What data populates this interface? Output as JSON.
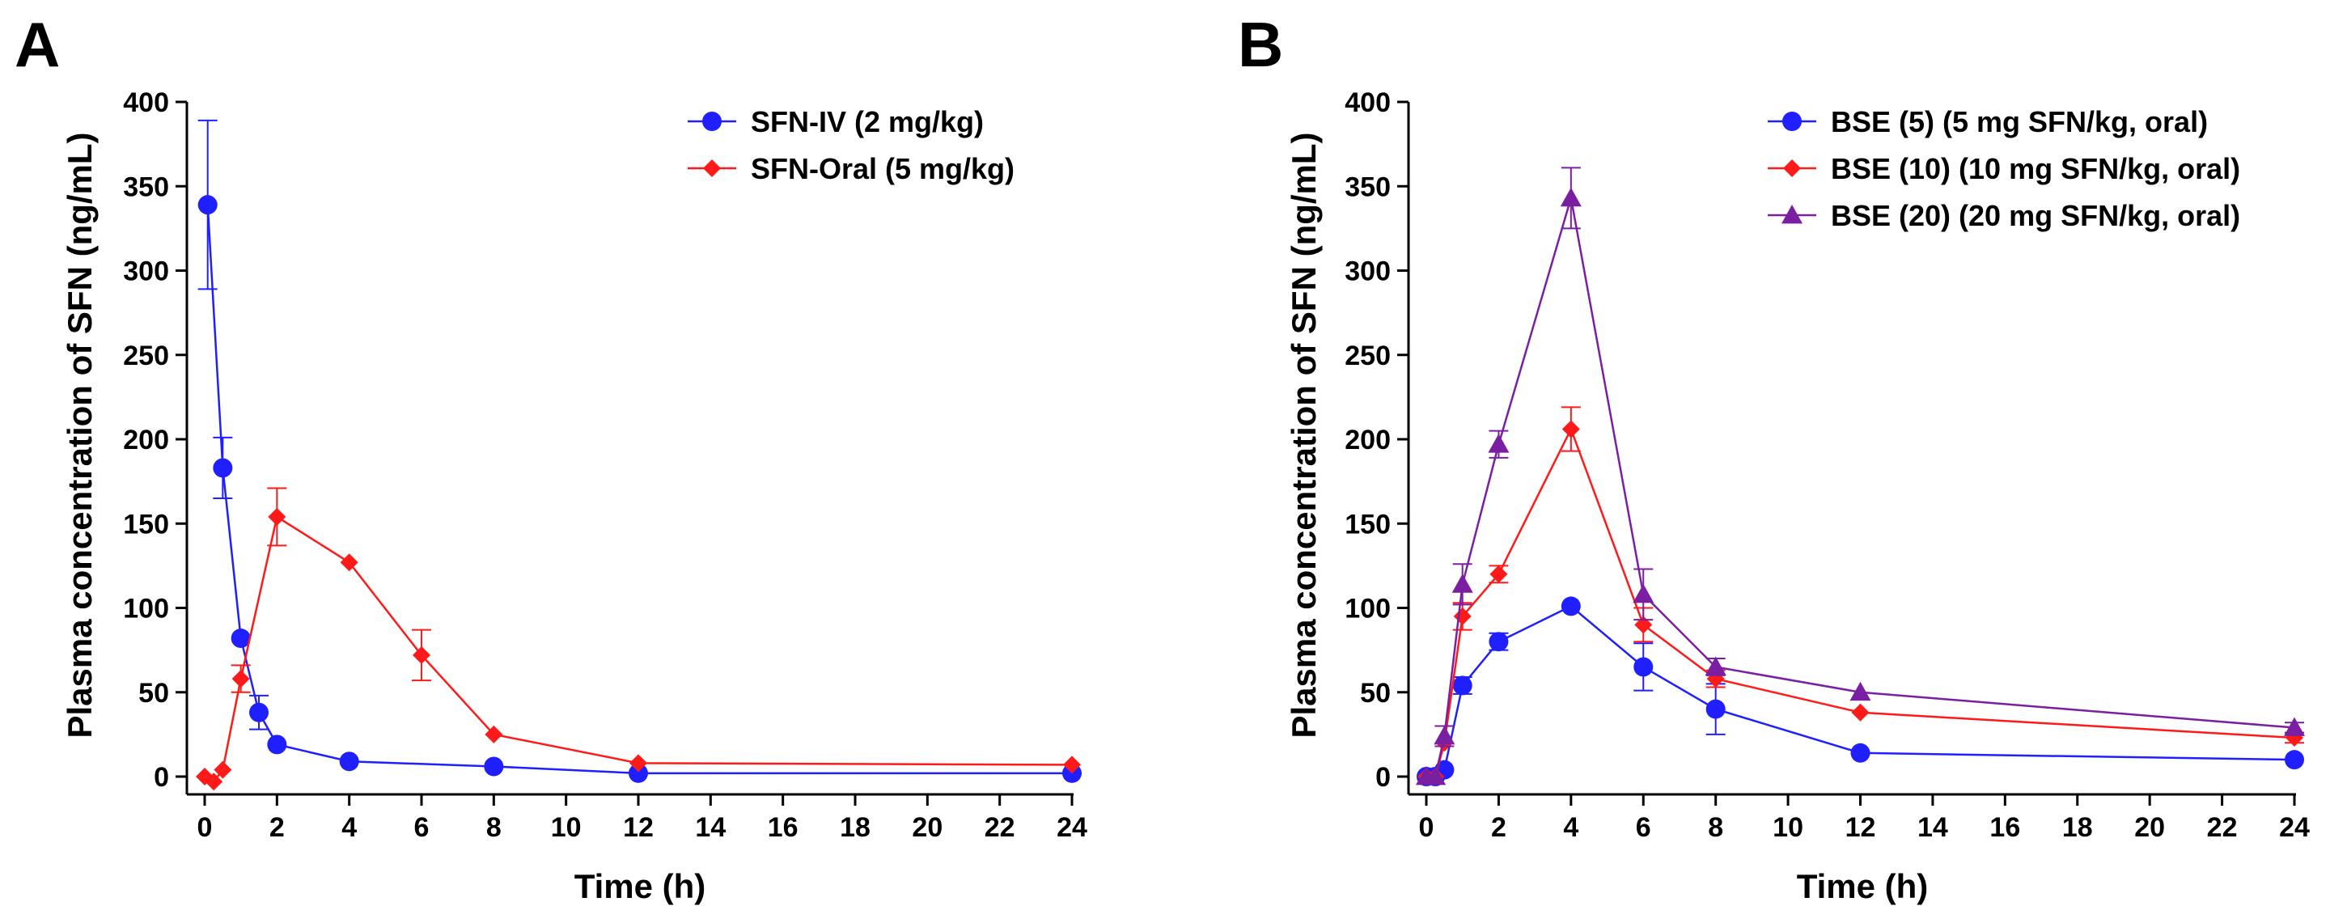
{
  "chart_data": [
    {
      "panel": "A",
      "type": "line",
      "title": "",
      "xlabel": "Time (h)",
      "ylabel": "Plasma concentration of SFN (ng/mL)",
      "xlim": [
        0,
        24
      ],
      "ylim": [
        0,
        400
      ],
      "xticks": [
        0,
        2,
        4,
        6,
        8,
        10,
        12,
        14,
        16,
        18,
        20,
        22,
        24
      ],
      "yticks": [
        0,
        50,
        100,
        150,
        200,
        250,
        300,
        350,
        400
      ],
      "grid": false,
      "legend_position": "top-right",
      "series": [
        {
          "name": "SFN-IV (2 mg/kg)",
          "color": "#1f1fff",
          "marker": "circle",
          "x": [
            0.083,
            0.5,
            1,
            1.5,
            2,
            4,
            8,
            12,
            24
          ],
          "y": [
            339,
            183,
            82,
            38,
            19,
            9,
            6,
            2,
            2
          ],
          "err": [
            50,
            18,
            0,
            10,
            0,
            0,
            0,
            0,
            0
          ]
        },
        {
          "name": "SFN-Oral (5 mg/kg)",
          "color": "#ff1a1a",
          "marker": "diamond",
          "x": [
            0,
            0.25,
            0.5,
            1,
            2,
            4,
            6,
            8,
            12,
            24
          ],
          "y": [
            0,
            -3,
            4,
            58,
            154,
            127,
            72,
            25,
            8,
            7
          ],
          "err": [
            0,
            0,
            0,
            8,
            17,
            0,
            15,
            0,
            0,
            0
          ]
        }
      ]
    },
    {
      "panel": "B",
      "type": "line",
      "title": "",
      "xlabel": "Time (h)",
      "ylabel": "Plasma concentration of SFN (ng/mL)",
      "xlim": [
        0,
        24
      ],
      "ylim": [
        0,
        400
      ],
      "xticks": [
        0,
        2,
        4,
        6,
        8,
        10,
        12,
        14,
        16,
        18,
        20,
        22,
        24
      ],
      "yticks": [
        0,
        50,
        100,
        150,
        200,
        250,
        300,
        350,
        400
      ],
      "grid": false,
      "legend_position": "top-right",
      "series": [
        {
          "name": "BSE (5) (5 mg SFN/kg, oral)",
          "color": "#1f1fff",
          "marker": "circle",
          "x": [
            0,
            0.25,
            0.5,
            1,
            2,
            4,
            6,
            8,
            12,
            24
          ],
          "y": [
            0,
            0,
            4,
            54,
            80,
            101,
            65,
            40,
            14,
            10
          ],
          "err": [
            0,
            0,
            0,
            5,
            5,
            0,
            14,
            15,
            0,
            0
          ]
        },
        {
          "name": "BSE (10) (10 mg SFN/kg, oral)",
          "color": "#ff1a1a",
          "marker": "diamond",
          "x": [
            0,
            0.25,
            0.5,
            1,
            2,
            4,
            6,
            8,
            12,
            24
          ],
          "y": [
            0,
            0,
            20,
            95,
            120,
            206,
            90,
            58,
            38,
            23
          ],
          "err": [
            0,
            0,
            0,
            8,
            5,
            13,
            10,
            5,
            0,
            3
          ]
        },
        {
          "name": "BSE (20) (20 mg SFN/kg, oral)",
          "color": "#7b1fa2",
          "marker": "triangle",
          "x": [
            0,
            0.25,
            0.5,
            1,
            2,
            4,
            6,
            8,
            12,
            24
          ],
          "y": [
            0,
            0,
            24,
            114,
            197,
            343,
            108,
            65,
            50,
            29
          ],
          "err": [
            0,
            0,
            6,
            12,
            8,
            18,
            15,
            5,
            0,
            3
          ]
        }
      ]
    }
  ]
}
